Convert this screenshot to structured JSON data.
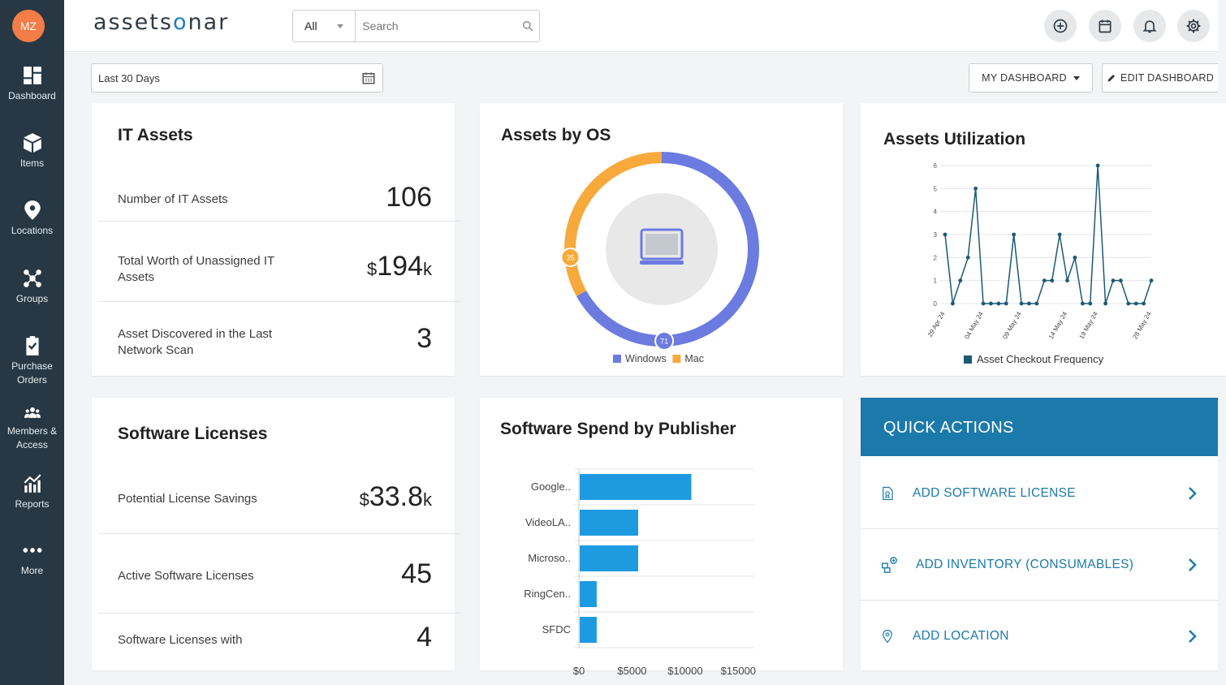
{
  "user": {
    "initials": "MZ"
  },
  "brand": {
    "logo_left": "assets",
    "logo_accent": "o",
    "logo_right": "nar"
  },
  "sidebar": {
    "items": [
      {
        "label": "Dashboard"
      },
      {
        "label": "Items"
      },
      {
        "label": "Locations"
      },
      {
        "label": "Groups"
      },
      {
        "label": "Purchase\nOrders"
      },
      {
        "label": "Members &\nAccess"
      },
      {
        "label": "Reports"
      },
      {
        "label": "More"
      }
    ]
  },
  "search": {
    "scope": "All",
    "placeholder": "Search"
  },
  "filters": {
    "date_range": "Last 30 Days",
    "my_dashboard": "MY DASHBOARD",
    "edit_dashboard": "EDIT DASHBOARD"
  },
  "it_assets": {
    "title": "IT Assets",
    "rows": [
      {
        "label": "Number of IT Assets",
        "value": "106",
        "prefix": "",
        "suffix": ""
      },
      {
        "label": "Total Worth of Unassigned IT Assets",
        "value": "194",
        "prefix": "$",
        "suffix": "k"
      },
      {
        "label": "Asset Discovered in the Last Network Scan",
        "value": "3",
        "prefix": "",
        "suffix": ""
      }
    ]
  },
  "assets_by_os": {
    "title": "Assets by OS",
    "legend": [
      "Windows",
      "Mac"
    ],
    "colors": {
      "Windows": "#6b7be0",
      "Mac": "#f8a93c"
    },
    "chart_data": {
      "type": "pie",
      "labels": [
        "Windows",
        "Mac"
      ],
      "values": [
        71,
        35
      ],
      "title": "Assets by OS",
      "legend": "bottom"
    },
    "center_icon": "laptop-icon"
  },
  "assets_utilization": {
    "title": "Assets Utilization",
    "legend": "Asset Checkout Frequency",
    "color": "#1c5a73",
    "chart_data": {
      "type": "line",
      "x_tick_labels": [
        "29 Apr 24",
        "04 May 24",
        "09 May 24",
        "14 May 24",
        "19 May 24",
        "28 May 24"
      ],
      "series": [
        {
          "name": "Asset Checkout Frequency",
          "values": [
            3,
            0,
            1,
            2,
            5,
            0,
            0,
            0,
            0,
            3,
            0,
            0,
            0,
            1,
            1,
            3,
            1,
            2,
            0,
            0,
            6,
            0,
            1,
            1,
            0,
            0,
            0,
            1
          ]
        }
      ],
      "ylim": [
        0,
        6
      ],
      "yticks": [
        0,
        1,
        2,
        3,
        4,
        5,
        6
      ],
      "grid": true,
      "legend": "bottom"
    }
  },
  "software_licenses": {
    "title": "Software Licenses",
    "rows": [
      {
        "label": "Potential License Savings",
        "value": "33.8",
        "prefix": "$",
        "suffix": "k"
      },
      {
        "label": "Active Software Licenses",
        "value": "45",
        "prefix": "",
        "suffix": ""
      },
      {
        "label": "Software Licenses with",
        "value": "4",
        "prefix": "",
        "suffix": ""
      }
    ]
  },
  "software_spend": {
    "title": "Software Spend by Publisher",
    "color": "#1e9be0",
    "chart_data": {
      "type": "bar",
      "orientation": "horizontal",
      "categories": [
        "Google..",
        "VideoLA..",
        "Microso..",
        "RingCen..",
        "SFDC"
      ],
      "values": [
        10500,
        5500,
        5500,
        1600,
        1600
      ],
      "xlim": [
        0,
        16500
      ],
      "xticks": [
        0,
        5000,
        10000,
        15000
      ],
      "xtick_labels": [
        "$0",
        "$5000",
        "$10000",
        "$15000"
      ],
      "grid": true
    }
  },
  "quick_actions": {
    "title": "QUICK ACTIONS",
    "items": [
      {
        "label": "ADD SOFTWARE LICENSE",
        "icon": "license-document-icon"
      },
      {
        "label": "ADD INVENTORY (CONSUMABLES)",
        "icon": "inventory-icon"
      },
      {
        "label": "ADD LOCATION",
        "icon": "location-pin-icon"
      }
    ]
  }
}
